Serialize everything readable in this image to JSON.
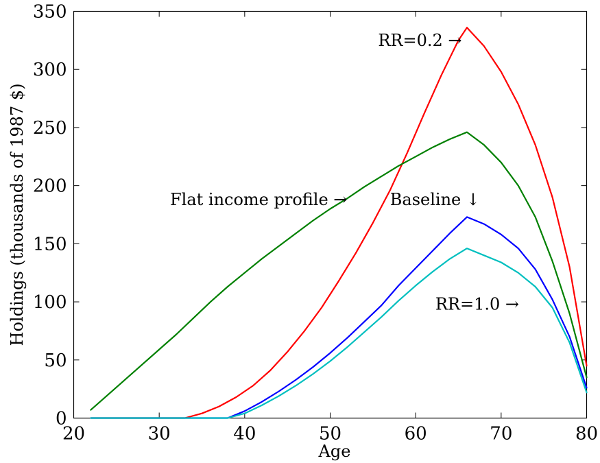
{
  "chart_data": {
    "type": "line",
    "title": "",
    "xlabel": "Age",
    "ylabel": "Holdings (thousands of 1987 $)",
    "xlim": [
      20,
      80
    ],
    "ylim": [
      0,
      350
    ],
    "xticks": [
      20,
      30,
      40,
      50,
      60,
      70,
      80
    ],
    "yticks": [
      0,
      50,
      100,
      150,
      200,
      250,
      300,
      350
    ],
    "xtick_labels": [
      "20",
      "30",
      "40",
      "50",
      "60",
      "70",
      "80"
    ],
    "ytick_labels": [
      "0",
      "50",
      "100",
      "150",
      "200",
      "250",
      "300",
      "350"
    ],
    "grid": false,
    "legend": "none",
    "series": [
      {
        "color": "#ff0000",
        "points": [
          [
            22,
            0
          ],
          [
            33,
            0
          ],
          [
            35,
            4
          ],
          [
            37,
            10
          ],
          [
            39,
            18
          ],
          [
            41,
            28
          ],
          [
            43,
            41
          ],
          [
            45,
            57
          ],
          [
            47,
            75
          ],
          [
            49,
            95
          ],
          [
            51,
            118
          ],
          [
            53,
            142
          ],
          [
            55,
            168
          ],
          [
            57,
            196
          ],
          [
            59,
            228
          ],
          [
            61,
            262
          ],
          [
            63,
            295
          ],
          [
            65,
            325
          ],
          [
            66,
            336
          ],
          [
            68,
            320
          ],
          [
            70,
            298
          ],
          [
            72,
            270
          ],
          [
            74,
            235
          ],
          [
            76,
            190
          ],
          [
            78,
            130
          ],
          [
            80,
            45
          ]
        ]
      },
      {
        "color": "#008000",
        "points": [
          [
            22,
            7
          ],
          [
            24,
            20
          ],
          [
            26,
            33
          ],
          [
            28,
            46
          ],
          [
            30,
            59
          ],
          [
            32,
            72
          ],
          [
            34,
            86
          ],
          [
            36,
            100
          ],
          [
            38,
            113
          ],
          [
            40,
            125
          ],
          [
            42,
            137
          ],
          [
            44,
            148
          ],
          [
            46,
            159
          ],
          [
            48,
            170
          ],
          [
            50,
            180
          ],
          [
            52,
            189
          ],
          [
            54,
            199
          ],
          [
            56,
            208
          ],
          [
            58,
            217
          ],
          [
            60,
            225
          ],
          [
            62,
            233
          ],
          [
            64,
            240
          ],
          [
            66,
            246
          ],
          [
            68,
            235
          ],
          [
            70,
            220
          ],
          [
            72,
            200
          ],
          [
            74,
            173
          ],
          [
            76,
            135
          ],
          [
            78,
            90
          ],
          [
            80,
            35
          ]
        ]
      },
      {
        "color": "#0000ff",
        "points": [
          [
            22,
            0
          ],
          [
            38,
            0
          ],
          [
            40,
            6
          ],
          [
            42,
            14
          ],
          [
            44,
            23
          ],
          [
            46,
            33
          ],
          [
            48,
            44
          ],
          [
            50,
            56
          ],
          [
            52,
            69
          ],
          [
            54,
            83
          ],
          [
            56,
            97
          ],
          [
            58,
            114
          ],
          [
            60,
            129
          ],
          [
            62,
            144
          ],
          [
            64,
            159
          ],
          [
            66,
            173
          ],
          [
            68,
            167
          ],
          [
            70,
            158
          ],
          [
            72,
            146
          ],
          [
            74,
            128
          ],
          [
            76,
            102
          ],
          [
            78,
            70
          ],
          [
            80,
            26
          ]
        ]
      },
      {
        "color": "#00bfbf",
        "points": [
          [
            22,
            0
          ],
          [
            38,
            0
          ],
          [
            40,
            4
          ],
          [
            42,
            11
          ],
          [
            44,
            19
          ],
          [
            46,
            28
          ],
          [
            48,
            38
          ],
          [
            50,
            49
          ],
          [
            52,
            61
          ],
          [
            54,
            74
          ],
          [
            56,
            87
          ],
          [
            58,
            101
          ],
          [
            60,
            114
          ],
          [
            62,
            126
          ],
          [
            64,
            137
          ],
          [
            66,
            146
          ],
          [
            68,
            140
          ],
          [
            70,
            134
          ],
          [
            72,
            125
          ],
          [
            74,
            113
          ],
          [
            76,
            95
          ],
          [
            78,
            65
          ],
          [
            80,
            22
          ]
        ]
      }
    ],
    "annotations": [
      {
        "text": "RR=0.2 →",
        "x": 65.4,
        "y": 325,
        "anchor": "end"
      },
      {
        "text": "Flat income profile →",
        "x": 52,
        "y": 188,
        "anchor": "end"
      },
      {
        "text": "Baseline ↓",
        "x": 57,
        "y": 188,
        "anchor": "start"
      },
      {
        "text": "RR=1.0 →",
        "x": 62.3,
        "y": 98,
        "anchor": "start"
      }
    ]
  }
}
